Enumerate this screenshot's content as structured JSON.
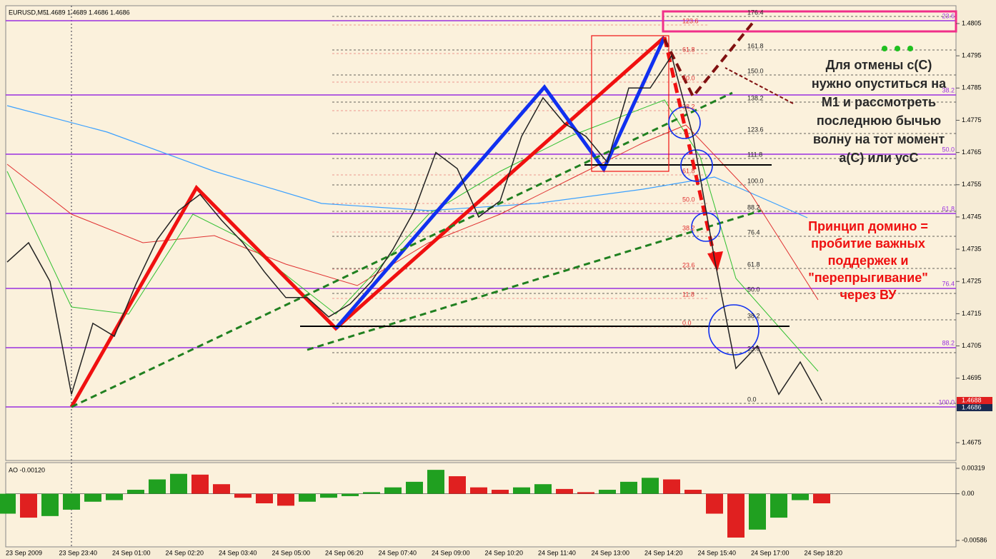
{
  "header": {
    "symbol": "EURUSD,M5",
    "quote": "1.4689 1.4689 1.4686 1.4686"
  },
  "price_axis": {
    "lim": [
      1.4805,
      1.4675
    ],
    "ticks": [
      1.4805,
      1.4795,
      1.4785,
      1.4775,
      1.4765,
      1.4755,
      1.4745,
      1.4735,
      1.4725,
      1.4715,
      1.4705,
      1.4695,
      1.4675
    ],
    "current_labels": [
      "1.4688",
      "1.4686"
    ]
  },
  "price_path": [
    1.4731,
    1.4737,
    1.4725,
    1.469,
    1.4712,
    1.4708,
    1.4724,
    1.4738,
    1.4747,
    1.4752,
    1.4744,
    1.4737,
    1.4728,
    1.472,
    1.472,
    1.4714,
    1.4718,
    1.4725,
    1.4735,
    1.4747,
    1.4765,
    1.476,
    1.4745,
    1.475,
    1.477,
    1.4782,
    1.4774,
    1.477,
    1.4762,
    1.4785,
    1.4785,
    1.4795,
    1.477,
    1.4732,
    1.4698,
    1.4705,
    1.469,
    1.47,
    1.4688
  ],
  "time_axis": [
    "23 Sep 2009",
    "23 Sep 23:40",
    "24 Sep 01:00",
    "24 Sep 02:20",
    "24 Sep 03:40",
    "24 Sep 05:00",
    "24 Sep 06:20",
    "24 Sep 07:40",
    "24 Sep 09:00",
    "24 Sep 10:20",
    "24 Sep 11:40",
    "24 Sep 13:00",
    "24 Sep 14:20",
    "24 Sep 15:40",
    "24 Sep 17:00",
    "24 Sep 18:20"
  ],
  "fib_black": [
    "176.4",
    "161.8",
    "150.0",
    "138.2",
    "123.6",
    "111.8",
    "100.0",
    "88.2",
    "76.4",
    "61.8",
    "50.0",
    "38.2",
    "23.6",
    "0.0"
  ],
  "fib_red": [
    "123.6",
    "61.8",
    "50.0",
    "38.2",
    "61.8",
    "50.0",
    "38.2",
    "23.6",
    "11.8",
    "0.0"
  ],
  "fib_purple": [
    "23.6",
    "38.2",
    "50.0",
    "61.8",
    "76.4",
    "88.2",
    "100.0"
  ],
  "note_cancel": [
    "Для отмены с(С)",
    "нужно опуститься на",
    "М1 и рассмотреть",
    "последнюю бычью",
    "волну на тот момент",
    "а(С) или усС"
  ],
  "note_domino": [
    "Принцип домино =",
    "пробитие важных",
    "поддержек и",
    "\"перепрыгивание\"",
    "через ВУ"
  ],
  "indicator": {
    "title": "AO -0.00120",
    "lim": [
      0.00319,
      -0.00586
    ],
    "ticks": [
      {
        "value": 0.00319,
        "label": "0.00319"
      },
      {
        "value": 0,
        "label": "0.00"
      },
      {
        "value": -0.00586,
        "label": "-0.00586"
      }
    ],
    "values": [
      -0.0025,
      -0.003,
      -0.0028,
      -0.002,
      -0.001,
      -0.0008,
      0.0005,
      0.0018,
      0.0025,
      0.0024,
      0.0012,
      -0.0005,
      -0.0012,
      -0.0015,
      -0.001,
      -0.0005,
      -0.0003,
      0.0002,
      0.0008,
      0.0015,
      0.003,
      0.0022,
      0.0008,
      0.0005,
      0.0008,
      0.0012,
      0.0006,
      0.0002,
      0.0005,
      0.0015,
      0.002,
      0.0018,
      0.0005,
      -0.0025,
      -0.0055,
      -0.0045,
      -0.003,
      -0.0008,
      -0.0012
    ]
  }
}
